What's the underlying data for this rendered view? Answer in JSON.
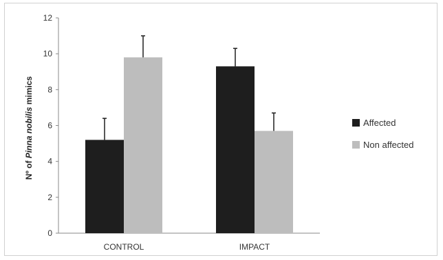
{
  "chart_data": {
    "type": "bar",
    "categories": [
      "CONTROL",
      "IMPACT"
    ],
    "series": [
      {
        "name": "Affected",
        "values": [
          5.2,
          9.3
        ],
        "errors": [
          1.2,
          1.0
        ],
        "color": "#1e1e1e"
      },
      {
        "name": "Non affected",
        "values": [
          9.8,
          5.7
        ],
        "errors": [
          1.2,
          1.0
        ],
        "color": "#bdbdbd"
      }
    ],
    "ylabel_parts": [
      "Nº of ",
      "Pinna nobilis",
      " mimics"
    ],
    "ylim": [
      0,
      12
    ],
    "yticks": [
      "0",
      "2",
      "4",
      "6",
      "8",
      "10",
      "12"
    ],
    "grid": false,
    "legend_position": "right"
  }
}
